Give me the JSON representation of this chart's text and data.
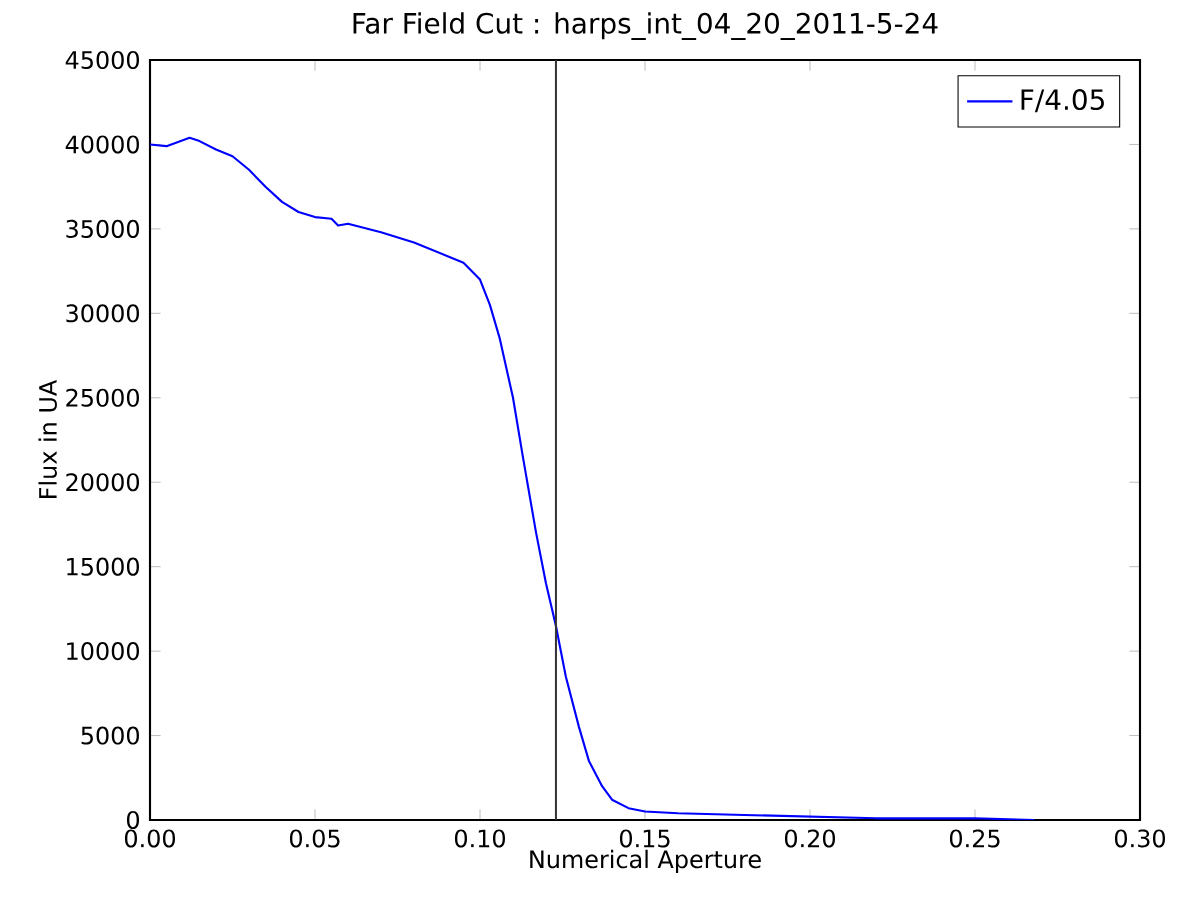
{
  "chart_data": {
    "type": "line",
    "title": "Far Field Cut : harps_int_04_20_2011-5-24",
    "xlabel": "Numerical Aperture",
    "ylabel": "Flux in UA",
    "xlim": [
      0,
      0.3
    ],
    "ylim": [
      0,
      45000
    ],
    "xticks": [
      {
        "value": 0,
        "label": "0.00"
      },
      {
        "value": 0.05,
        "label": "0.05"
      },
      {
        "value": 0.1,
        "label": "0.10"
      },
      {
        "value": 0.15,
        "label": "0.15"
      },
      {
        "value": 0.2,
        "label": "0.20"
      },
      {
        "value": 0.25,
        "label": "0.25"
      },
      {
        "value": 0.3,
        "label": "0.30"
      }
    ],
    "yticks": [
      0,
      5000,
      10000,
      15000,
      20000,
      25000,
      30000,
      35000,
      40000,
      45000
    ],
    "legend": "top right",
    "ref_lines": [
      {
        "axis": "x",
        "value": 0.123,
        "color": "#333333"
      }
    ],
    "series": [
      {
        "name": "F/4.05",
        "color": "#0000ff",
        "x": [
          0,
          0.005,
          0.012,
          0.015,
          0.02,
          0.025,
          0.03,
          0.035,
          0.04,
          0.045,
          0.05,
          0.055,
          0.057,
          0.06,
          0.07,
          0.08,
          0.09,
          0.095,
          0.1,
          0.103,
          0.106,
          0.11,
          0.113,
          0.117,
          0.12,
          0.123,
          0.126,
          0.13,
          0.133,
          0.137,
          0.14,
          0.145,
          0.15,
          0.16,
          0.18,
          0.2,
          0.22,
          0.25,
          0.268
        ],
        "values": [
          40000,
          39900,
          40400,
          40200,
          39700,
          39300,
          38500,
          37500,
          36600,
          36000,
          35700,
          35600,
          35200,
          35300,
          34800,
          34200,
          33400,
          33000,
          32000,
          30500,
          28500,
          25000,
          21500,
          17000,
          14000,
          11500,
          8500,
          5500,
          3500,
          2000,
          1200,
          700,
          500,
          400,
          300,
          200,
          100,
          100,
          0
        ]
      }
    ]
  }
}
